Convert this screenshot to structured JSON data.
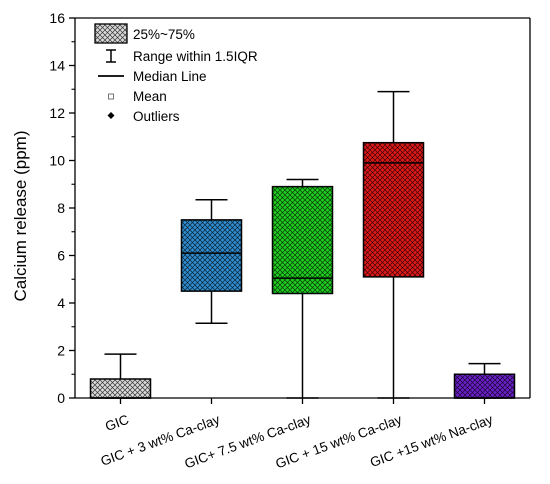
{
  "chart_data": {
    "type": "box",
    "ylabel": "Calcium release (ppm)",
    "xlabel": "",
    "ylim": [
      0,
      16
    ],
    "y_major_ticks": [
      0,
      2,
      4,
      6,
      8,
      10,
      12,
      14,
      16
    ],
    "y_minor_step": 1,
    "categories": [
      "GIC",
      "GIC + 3 wt% Ca-clay",
      "GIC+ 7.5 wt% Ca-clay",
      "GIC + 15 wt% Ca-clay",
      "GIC +15 wt% Na-clay"
    ],
    "boxes": [
      {
        "category": "GIC",
        "whisker_low": 0.0,
        "q1": 0.0,
        "median": 0.0,
        "q3": 0.8,
        "whisker_high": 1.85,
        "fill": "#d9d9d9"
      },
      {
        "category": "GIC + 3 wt% Ca-clay",
        "whisker_low": 3.15,
        "q1": 4.5,
        "median": 6.1,
        "q3": 7.5,
        "whisker_high": 8.35,
        "fill": "#2e8ccf"
      },
      {
        "category": "GIC+ 7.5 wt% Ca-clay",
        "whisker_low": 0.0,
        "q1": 4.4,
        "median": 5.05,
        "q3": 8.9,
        "whisker_high": 9.2,
        "fill": "#1fcf1f"
      },
      {
        "category": "GIC + 15 wt% Ca-clay",
        "whisker_low": 0.0,
        "q1": 5.1,
        "median": 9.9,
        "q3": 10.75,
        "whisker_high": 12.9,
        "fill": "#e01818"
      },
      {
        "category": "GIC +15 wt% Na-clay",
        "whisker_low": 0.0,
        "q1": 0.0,
        "median": 0.0,
        "q3": 1.0,
        "whisker_high": 1.45,
        "fill": "#6a1fc9"
      }
    ],
    "legend": {
      "position": "top-left",
      "entries": [
        {
          "key": "box",
          "label": "25%~75%"
        },
        {
          "key": "whisker",
          "label": "Range within 1.5IQR"
        },
        {
          "key": "median",
          "label": "Median Line"
        },
        {
          "key": "mean",
          "label": "Mean"
        },
        {
          "key": "outlier",
          "label": "Outliers"
        }
      ]
    },
    "pattern": "crosshatch",
    "grid": false
  }
}
